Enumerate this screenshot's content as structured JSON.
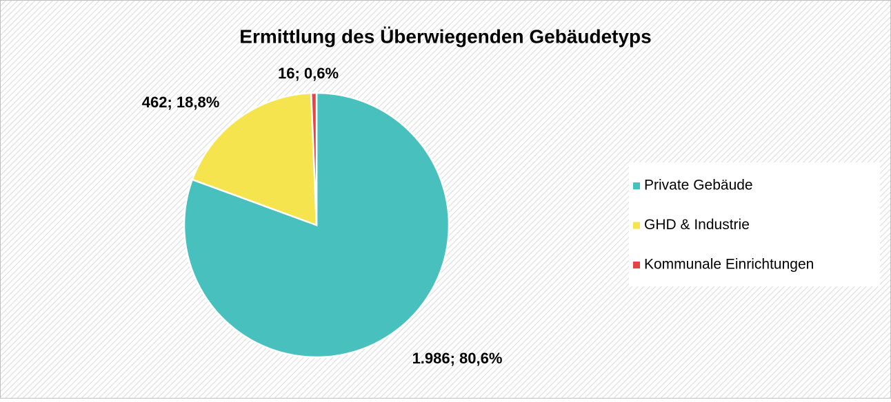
{
  "chart_data": {
    "type": "pie",
    "title": "Ermittlung des Überwiegenden Gebäudetyps",
    "categories": [
      "Private Gebäude",
      "GHD & Industrie",
      "Kommunale Einrichtungen"
    ],
    "values": [
      1986,
      462,
      16
    ],
    "value_labels": [
      "1.986; 80,6%",
      "462; 18,8%",
      "16; 0,6%"
    ],
    "colors": [
      "#48c1be",
      "#f5e44e",
      "#e84343"
    ],
    "legend": "right"
  }
}
